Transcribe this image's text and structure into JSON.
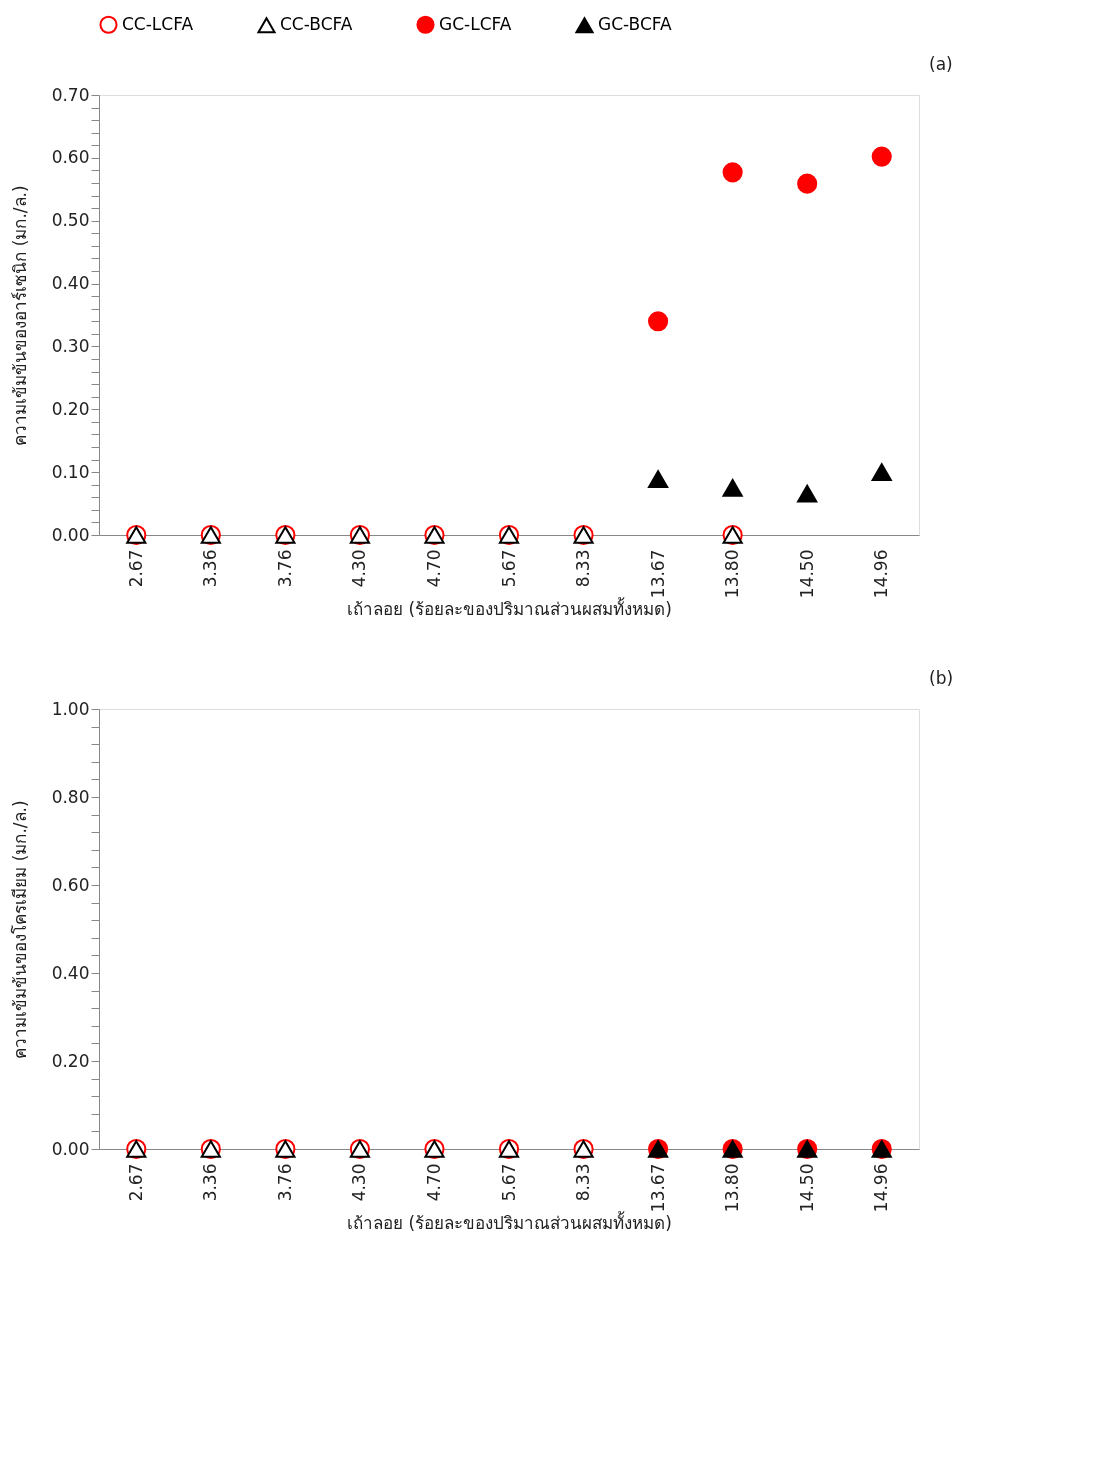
{
  "chart_data": [
    {
      "type": "scatter",
      "xlabel": "เถ้าลอย (ร้อยละของปริมาณส่วนผสมทั้งหมด)",
      "ylabel": "ความเข้มข้นของอาร์เซนิก (มก./ล.)",
      "annotations": [
        "(a)"
      ],
      "legend": "top",
      "grid": false,
      "categories": [
        "2.67",
        "3.36",
        "3.76",
        "4.30",
        "4.70",
        "5.67",
        "8.33",
        "13.67",
        "13.80",
        "14.50",
        "14.96"
      ],
      "ylim": [
        0,
        0.7
      ],
      "yticks": [
        {
          "value": 0,
          "label": "0.00"
        },
        {
          "value": 0.02,
          "label": null
        },
        {
          "value": 0.04,
          "label": null
        },
        {
          "value": 0.06,
          "label": null
        },
        {
          "value": 0.08,
          "label": null
        },
        {
          "value": 0.1,
          "label": "0.10"
        },
        {
          "value": 0.12,
          "label": null
        },
        {
          "value": 0.14,
          "label": null
        },
        {
          "value": 0.16,
          "label": null
        },
        {
          "value": 0.18,
          "label": null
        },
        {
          "value": 0.2,
          "label": "0.20"
        },
        {
          "value": 0.22,
          "label": null
        },
        {
          "value": 0.24,
          "label": null
        },
        {
          "value": 0.26,
          "label": null
        },
        {
          "value": 0.28,
          "label": null
        },
        {
          "value": 0.3,
          "label": "0.30"
        },
        {
          "value": 0.32,
          "label": null
        },
        {
          "value": 0.34,
          "label": null
        },
        {
          "value": 0.36,
          "label": null
        },
        {
          "value": 0.38,
          "label": null
        },
        {
          "value": 0.4,
          "label": "0.40"
        },
        {
          "value": 0.42,
          "label": null
        },
        {
          "value": 0.44,
          "label": null
        },
        {
          "value": 0.46,
          "label": null
        },
        {
          "value": 0.48,
          "label": null
        },
        {
          "value": 0.5,
          "label": "0.50"
        },
        {
          "value": 0.52,
          "label": null
        },
        {
          "value": 0.54,
          "label": null
        },
        {
          "value": 0.56,
          "label": null
        },
        {
          "value": 0.58,
          "label": null
        },
        {
          "value": 0.6,
          "label": "0.60"
        },
        {
          "value": 0.62,
          "label": null
        },
        {
          "value": 0.64,
          "label": null
        },
        {
          "value": 0.66,
          "label": null
        },
        {
          "value": 0.68,
          "label": null
        },
        {
          "value": 0.7,
          "label": "0.70"
        }
      ],
      "series": [
        {
          "name": "CC-LCFA",
          "color": "#ff0000",
          "marker": "circle",
          "values": [
            0,
            0,
            0,
            0,
            0,
            0,
            0,
            null,
            0,
            null,
            null
          ]
        },
        {
          "name": "CC-BCFA",
          "color": "#000000",
          "marker": "triangle",
          "values": [
            0,
            0,
            0,
            0,
            0,
            0,
            0,
            null,
            0,
            null,
            null
          ]
        },
        {
          "name": "GC-LCFA",
          "color": "#ff0000",
          "marker": "circle",
          "values": [
            null,
            null,
            null,
            null,
            null,
            null,
            null,
            0.34,
            0.577,
            0.559,
            0.602
          ]
        },
        {
          "name": "GC-BCFA",
          "color": "#000000",
          "marker": "triangle",
          "values": [
            null,
            null,
            null,
            null,
            null,
            null,
            null,
            0.089,
            0.075,
            0.066,
            0.1
          ]
        }
      ]
    },
    {
      "type": "scatter",
      "xlabel": "เถ้าลอย (ร้อยละของปริมาณส่วนผสมทั้งหมด)",
      "ylabel": "ความเข้มข้นของโครเมียม (มก./ล.)",
      "annotations": [
        "(b)"
      ],
      "legend": "top",
      "grid": false,
      "categories": [
        "2.67",
        "3.36",
        "3.76",
        "4.30",
        "4.70",
        "5.67",
        "8.33",
        "13.67",
        "13.80",
        "14.50",
        "14.96"
      ],
      "ylim": [
        0,
        1
      ],
      "yticks": [
        {
          "value": 0,
          "label": "0.00"
        },
        {
          "value": 0.04,
          "label": null
        },
        {
          "value": 0.08,
          "label": null
        },
        {
          "value": 0.12,
          "label": null
        },
        {
          "value": 0.16,
          "label": null
        },
        {
          "value": 0.2,
          "label": "0.20"
        },
        {
          "value": 0.24,
          "label": null
        },
        {
          "value": 0.28,
          "label": null
        },
        {
          "value": 0.32,
          "label": null
        },
        {
          "value": 0.36,
          "label": null
        },
        {
          "value": 0.4,
          "label": "0.40"
        },
        {
          "value": 0.44,
          "label": null
        },
        {
          "value": 0.48,
          "label": null
        },
        {
          "value": 0.52,
          "label": null
        },
        {
          "value": 0.56,
          "label": null
        },
        {
          "value": 0.6,
          "label": "0.60"
        },
        {
          "value": 0.64,
          "label": null
        },
        {
          "value": 0.68,
          "label": null
        },
        {
          "value": 0.72,
          "label": null
        },
        {
          "value": 0.76,
          "label": null
        },
        {
          "value": 0.8,
          "label": "0.80"
        },
        {
          "value": 0.84,
          "label": null
        },
        {
          "value": 0.88,
          "label": null
        },
        {
          "value": 0.92,
          "label": null
        },
        {
          "value": 0.96,
          "label": null
        },
        {
          "value": 1,
          "label": "1.00"
        }
      ],
      "series": [
        {
          "name": "CC-LCFA",
          "color": "#ff0000",
          "marker": "circle",
          "values": [
            0,
            0,
            0,
            0,
            0,
            0,
            0,
            null,
            null,
            null,
            null
          ]
        },
        {
          "name": "CC-BCFA",
          "color": "#000000",
          "marker": "triangle",
          "values": [
            0,
            0,
            0,
            0,
            0,
            0,
            0,
            null,
            null,
            null,
            null
          ]
        },
        {
          "name": "GC-LCFA",
          "color": "#ff0000",
          "marker": "circle",
          "values": [
            null,
            null,
            null,
            null,
            null,
            null,
            null,
            0,
            0,
            0,
            0
          ]
        },
        {
          "name": "GC-BCFA",
          "color": "#000000",
          "marker": "triangle",
          "values": [
            null,
            null,
            null,
            null,
            null,
            null,
            null,
            0,
            0,
            0,
            0
          ]
        }
      ]
    }
  ]
}
